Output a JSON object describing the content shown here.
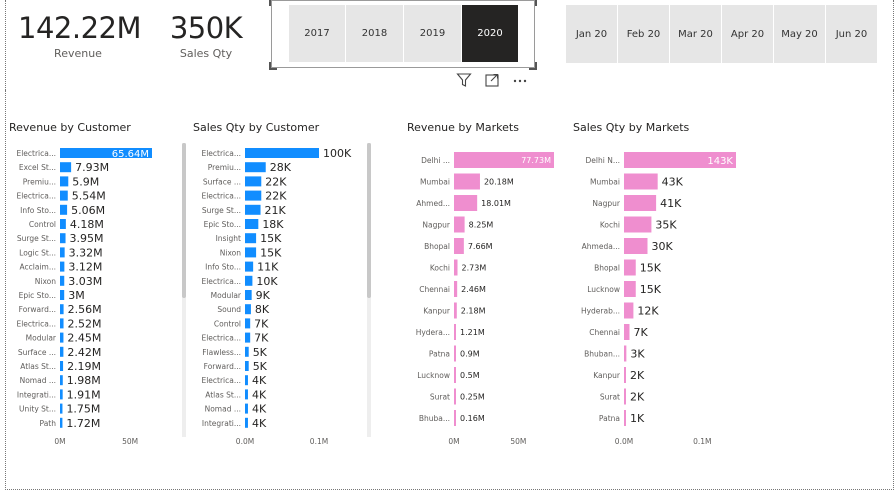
{
  "kpis": [
    {
      "value": "142.22M",
      "label": "Revenue"
    },
    {
      "value": "350K",
      "label": "Sales Qty"
    }
  ],
  "year_slicer": {
    "items": [
      "2017",
      "2018",
      "2019",
      "2020"
    ],
    "selected": "2020"
  },
  "month_slicer": {
    "items": [
      "Jan 20",
      "Feb 20",
      "Mar 20",
      "Apr 20",
      "May 20",
      "Jun 20"
    ]
  },
  "toolbar": {
    "icons": [
      "filter-icon",
      "focus-mode-icon",
      "more-options-icon"
    ]
  },
  "colors": {
    "blue": "#118dff",
    "pink": "#ef8ecf",
    "dark": "#252423"
  },
  "chart_data": [
    {
      "type": "bar",
      "orientation": "horizontal",
      "title": "Revenue by Customer",
      "color": "#118dff",
      "categories": [
        "Electrica...",
        "Excel St...",
        "Premiu...",
        "Electrica...",
        "Info Sto...",
        "Control",
        "Surge St...",
        "Logic St...",
        "Acclaim...",
        "Nixon",
        "Epic Sto...",
        "Forward...",
        "Electrica...",
        "Modular",
        "Surface ...",
        "Atlas St...",
        "Nomad ...",
        "Integrati...",
        "Unity St...",
        "Path"
      ],
      "values": [
        65.64,
        7.93,
        5.9,
        5.54,
        5.06,
        4.18,
        3.95,
        3.32,
        3.12,
        3.03,
        3,
        2.56,
        2.52,
        2.45,
        2.42,
        2.19,
        1.98,
        1.91,
        1.75,
        1.72
      ],
      "data_labels": [
        "65.64M",
        "7.93M",
        "5.9M",
        "5.54M",
        "5.06M",
        "4.18M",
        "3.95M",
        "3.32M",
        "3.12M",
        "3.03M",
        "3M",
        "2.56M",
        "2.52M",
        "2.45M",
        "2.42M",
        "2.19M",
        "1.98M",
        "1.91M",
        "1.75M",
        "1.72M"
      ],
      "x_ticks": [
        "0M",
        "50M"
      ],
      "x_tick_values": [
        0,
        50
      ],
      "xlim": [
        0,
        65.64
      ]
    },
    {
      "type": "bar",
      "orientation": "horizontal",
      "title": "Sales Qty by Customer",
      "color": "#118dff",
      "categories": [
        "Electrica...",
        "Premiu...",
        "Surface ...",
        "Electrica...",
        "Surge St...",
        "Epic Sto...",
        "Insight",
        "Nixon",
        "Info Sto...",
        "Electrica...",
        "Modular",
        "Sound",
        "Control",
        "Electrica...",
        "Flawless...",
        "Forward...",
        "Electrica...",
        "Atlas St...",
        "Nomad ...",
        "Integrati..."
      ],
      "values": [
        100,
        28,
        22,
        22,
        21,
        18,
        15,
        15,
        11,
        10,
        9,
        8,
        7,
        7,
        5,
        5,
        4,
        4,
        4,
        4
      ],
      "data_labels": [
        "100K",
        "28K",
        "22K",
        "22K",
        "21K",
        "18K",
        "15K",
        "15K",
        "11K",
        "10K",
        "9K",
        "8K",
        "7K",
        "7K",
        "5K",
        "5K",
        "4K",
        "4K",
        "4K",
        "4K"
      ],
      "x_ticks": [
        "0.0M",
        "0.1M"
      ],
      "x_tick_values": [
        0,
        100
      ],
      "xlim": [
        0,
        100
      ]
    },
    {
      "type": "bar",
      "orientation": "horizontal",
      "title": "Revenue by Markets",
      "color": "#ef8ecf",
      "categories": [
        "Delhi ...",
        "Mumbai",
        "Ahmed...",
        "Nagpur",
        "Bhopal",
        "Kochi",
        "Chennai",
        "Kanpur",
        "Hydera...",
        "Patna",
        "Lucknow",
        "Surat",
        "Bhuba..."
      ],
      "values": [
        77.73,
        20.18,
        18.01,
        8.25,
        7.66,
        2.73,
        2.46,
        2.18,
        1.21,
        0.9,
        0.5,
        0.25,
        0.16
      ],
      "data_labels": [
        "77.73M",
        "20.18M",
        "18.01M",
        "8.25M",
        "7.66M",
        "2.73M",
        "2.46M",
        "2.18M",
        "1.21M",
        "0.9M",
        "0.5M",
        "0.25M",
        "0.16M"
      ],
      "x_ticks": [
        "0M",
        "50M"
      ],
      "x_tick_values": [
        0,
        50
      ],
      "xlim": [
        0,
        77.73
      ]
    },
    {
      "type": "bar",
      "orientation": "horizontal",
      "title": "Sales Qty by Markets",
      "color": "#ef8ecf",
      "categories": [
        "Delhi N...",
        "Mumbai",
        "Nagpur",
        "Kochi",
        "Ahmeda...",
        "Bhopal",
        "Lucknow",
        "Hyderab...",
        "Chennai",
        "Bhuban...",
        "Kanpur",
        "Surat",
        "Patna"
      ],
      "values": [
        143,
        43,
        41,
        35,
        30,
        15,
        15,
        12,
        7,
        3,
        2,
        2,
        1
      ],
      "data_labels": [
        "143K",
        "43K",
        "41K",
        "35K",
        "30K",
        "15K",
        "15K",
        "12K",
        "7K",
        "3K",
        "2K",
        "2K",
        "1K"
      ],
      "x_ticks": [
        "0.0M",
        "0.1M"
      ],
      "x_tick_values": [
        0,
        100
      ],
      "xlim": [
        0,
        143
      ]
    }
  ]
}
